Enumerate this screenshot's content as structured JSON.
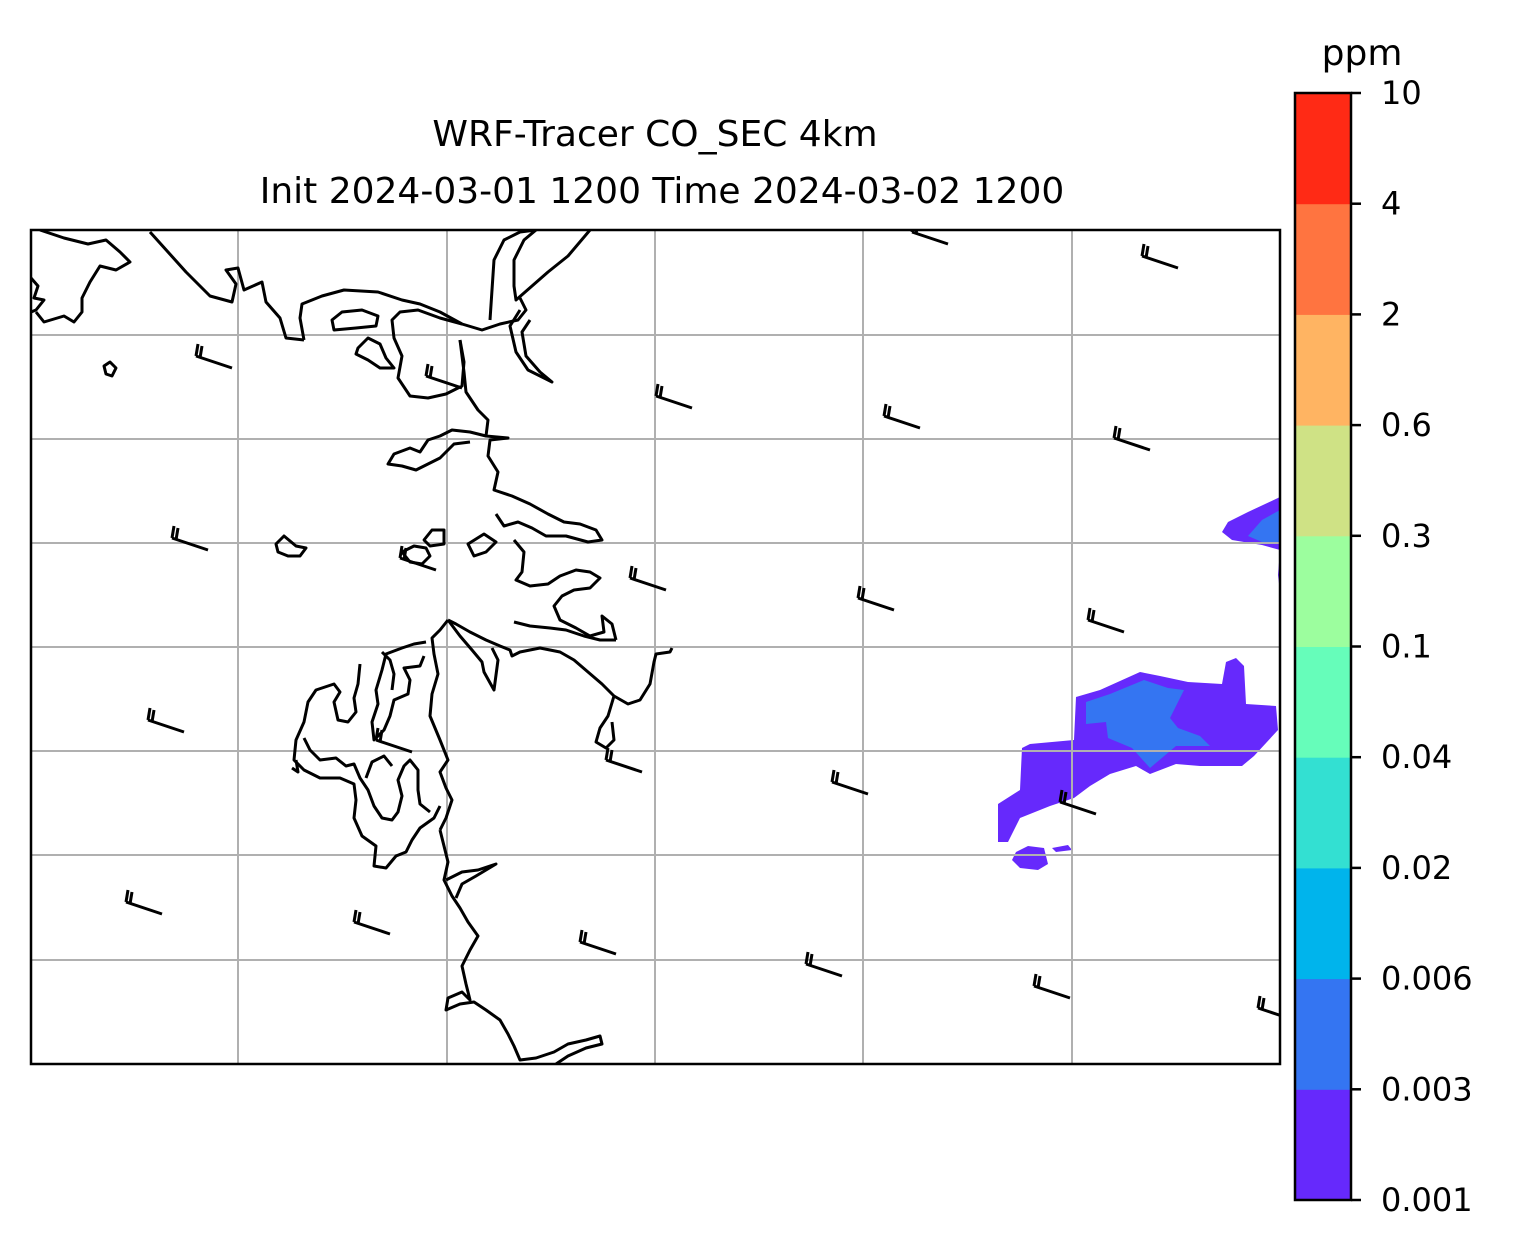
{
  "title": {
    "line1": "WRF-Tracer CO_SEC 4km",
    "line2": "Init 2024-03-01 1200 Time 2024-03-02 1200"
  },
  "colorbar": {
    "unit": "ppm",
    "levels": [
      "0.001",
      "0.003",
      "0.006",
      "0.02",
      "0.04",
      "0.1",
      "0.3",
      "0.6",
      "2",
      "4",
      "10"
    ],
    "colors": [
      "#6629fc",
      "#3475f2",
      "#00b4ec",
      "#33e0d2",
      "#66fdba",
      "#9cfe9e",
      "#cfe285",
      "#ffb462",
      "#ff7440",
      "#ff2a15"
    ]
  },
  "map": {
    "grid": "on",
    "coastline_color": "#000000",
    "grid_color": "#b0b0b0",
    "tracer_field_levels_present": [
      "0.001",
      "0.003"
    ]
  }
}
